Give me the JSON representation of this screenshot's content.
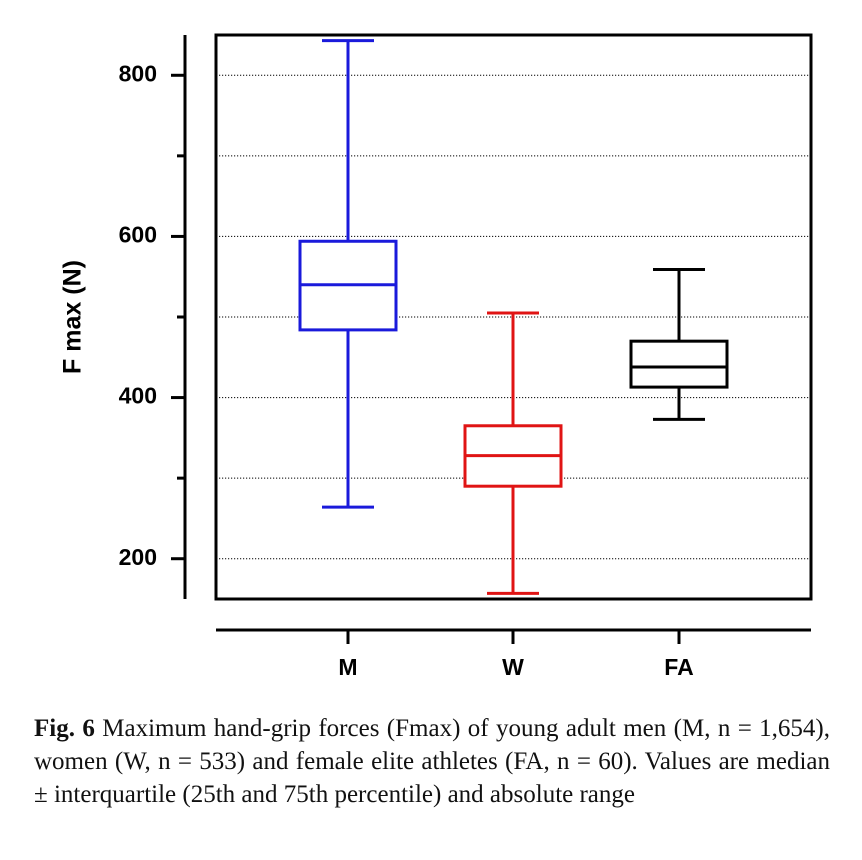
{
  "chart_data": {
    "type": "box",
    "categories": [
      "M",
      "W",
      "FA"
    ],
    "ylabel": "F max (N)",
    "ylim": [
      150,
      850
    ],
    "yticks_labeled": [
      200,
      400,
      600,
      800
    ],
    "yticks_minor": [
      300,
      500,
      700
    ],
    "gridlines": [
      200,
      300,
      400,
      500,
      600,
      700,
      800
    ],
    "grid": "dotted horizontal",
    "boxes": [
      {
        "category": "M",
        "min": 264,
        "q1": 484,
        "median": 540,
        "q3": 594,
        "max": 843,
        "color": "#1a1adb"
      },
      {
        "category": "W",
        "min": 157,
        "q1": 290,
        "median": 328,
        "q3": 365,
        "max": 505,
        "color": "#e01414"
      },
      {
        "category": "FA",
        "min": 373,
        "q1": 413,
        "median": 438,
        "q3": 470,
        "max": 559,
        "color": "#000000"
      }
    ]
  },
  "caption": {
    "fig_label": "Fig. 6",
    "text": " Maximum hand-grip forces (Fmax) of young adult men (M, n = 1,654), women (W, n = 533) and female elite athletes (FA, n = 60). Values are median ± interquartile (25th and 75th percentile) and absolute range"
  }
}
